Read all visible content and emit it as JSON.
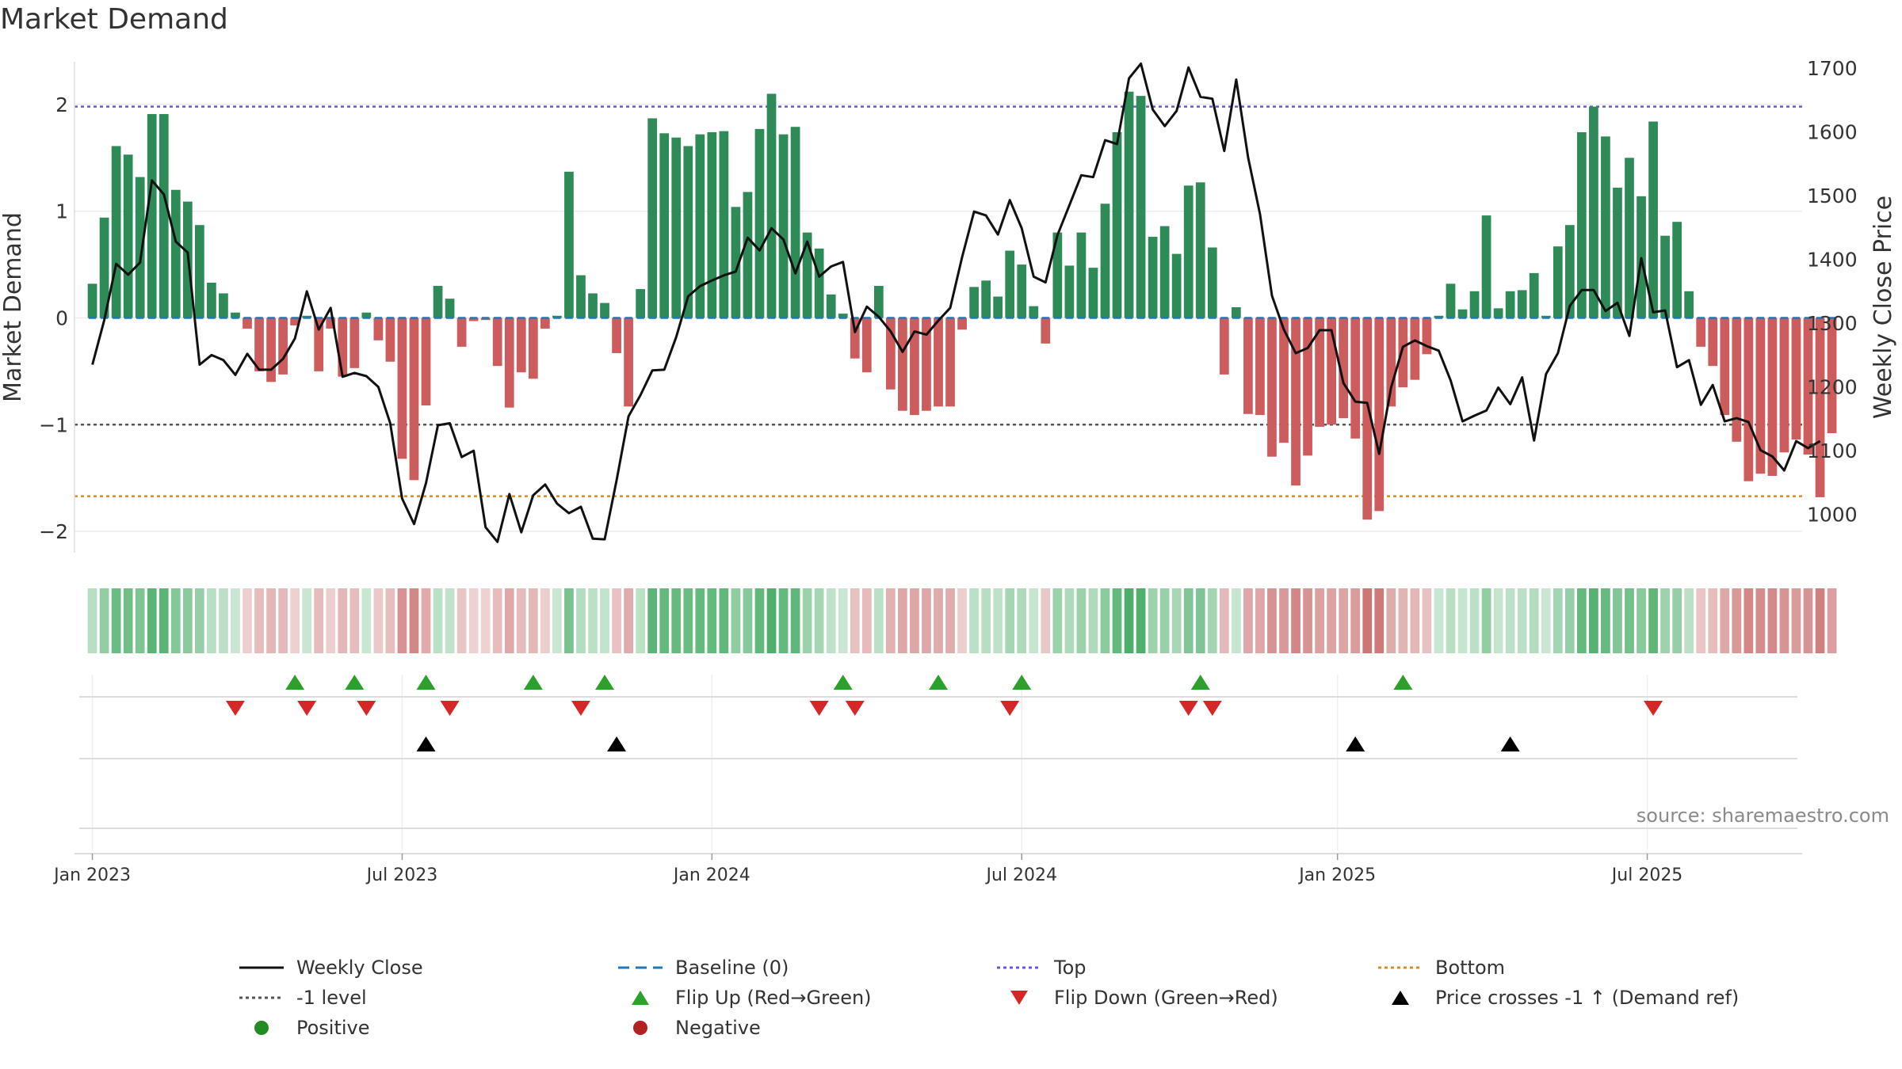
{
  "chart_data": {
    "type": "bar",
    "title": "Market Demand",
    "ylabel_left": "Market Demand",
    "ylabel_right": "Weekly Close Price",
    "ylim_left": [
      -2.2,
      2.4
    ],
    "ylim_right": [
      940,
      1710
    ],
    "yticks_left": [
      {
        "value": 2,
        "label": "2"
      },
      {
        "value": 1,
        "label": "1"
      },
      {
        "value": 0,
        "label": "0"
      },
      {
        "value": -1,
        "label": "−1"
      },
      {
        "value": -2,
        "label": "−2"
      }
    ],
    "yticks_right": [
      1700,
      1600,
      1500,
      1400,
      1300,
      1200,
      1100,
      1000
    ],
    "x_range_weeks": [
      -1.5,
      143.5
    ],
    "xticks": [
      {
        "week": 0,
        "label": "Jan 2023"
      },
      {
        "week": 26,
        "label": "Jul 2023"
      },
      {
        "week": 52,
        "label": "Jan 2024"
      },
      {
        "week": 78,
        "label": "Jul 2024"
      },
      {
        "week": 104.5,
        "label": "Jan 2025"
      },
      {
        "week": 130.5,
        "label": "Jul 2025"
      }
    ],
    "reference_lines": {
      "top": 1.98,
      "minus_one": -1,
      "bottom": -1.67
    },
    "demand": [
      0.32,
      0.94,
      1.61,
      1.53,
      1.32,
      1.91,
      1.91,
      1.2,
      1.09,
      0.87,
      0.33,
      0.23,
      0.05,
      -0.1,
      -0.5,
      -0.6,
      -0.53,
      -0.07,
      0.02,
      -0.5,
      -0.1,
      -0.55,
      -0.47,
      0.05,
      -0.21,
      -0.41,
      -1.32,
      -1.52,
      -0.82,
      0.3,
      0.18,
      -0.27,
      -0.03,
      -0.02,
      -0.45,
      -0.84,
      -0.51,
      -0.57,
      -0.1,
      0.02,
      1.37,
      0.4,
      0.23,
      0.14,
      -0.33,
      -0.83,
      0.27,
      1.87,
      1.73,
      1.69,
      1.61,
      1.72,
      1.74,
      1.75,
      1.04,
      1.18,
      1.77,
      2.1,
      1.72,
      1.79,
      0.8,
      0.65,
      0.22,
      0.04,
      -0.38,
      -0.51,
      0.3,
      -0.67,
      -0.87,
      -0.91,
      -0.87,
      -0.83,
      -0.83,
      -0.11,
      0.29,
      0.35,
      0.2,
      0.63,
      0.5,
      0.11,
      -0.24,
      0.8,
      0.49,
      0.8,
      0.47,
      1.07,
      1.74,
      2.12,
      2.08,
      0.76,
      0.86,
      0.6,
      1.24,
      1.27,
      0.66,
      -0.53,
      0.1,
      -0.9,
      -0.91,
      -1.3,
      -1.17,
      -1.57,
      -1.29,
      -1.02,
      -1.0,
      -0.94,
      -1.13,
      -1.89,
      -1.81,
      -0.83,
      -0.65,
      -0.58,
      -0.34,
      0.02,
      0.32,
      0.08,
      0.25,
      0.96,
      0.09,
      0.25,
      0.26,
      0.42,
      0.02,
      0.67,
      0.87,
      1.74,
      1.98,
      1.7,
      1.22,
      1.5,
      1.14,
      1.84,
      0.77,
      0.9,
      0.25,
      -0.27,
      -0.45,
      -0.91,
      -1.16,
      -1.53,
      -1.46,
      -1.48,
      -1.26,
      -1.14,
      -1.28,
      -1.68,
      -1.08
    ],
    "weekly_close": [
      1235,
      1305,
      1393,
      1376,
      1395,
      1524,
      1502,
      1428,
      1411,
      1235,
      1250,
      1242,
      1219,
      1252,
      1227,
      1227,
      1244,
      1276,
      1350,
      1290,
      1324,
      1216,
      1222,
      1217,
      1200,
      1143,
      1025,
      985,
      1049,
      1140,
      1143,
      1090,
      1100,
      980,
      957,
      1032,
      972,
      1030,
      1047,
      1017,
      1002,
      1012,
      962,
      961,
      1054,
      1154,
      1187,
      1226,
      1227,
      1278,
      1342,
      1358,
      1367,
      1375,
      1381,
      1434,
      1414,
      1449,
      1431,
      1378,
      1428,
      1373,
      1389,
      1396,
      1286,
      1326,
      1310,
      1287,
      1255,
      1287,
      1282,
      1304,
      1324,
      1404,
      1475,
      1469,
      1439,
      1493,
      1449,
      1373,
      1364,
      1438,
      1485,
      1532,
      1529,
      1587,
      1581,
      1684,
      1707,
      1635,
      1609,
      1633,
      1701,
      1655,
      1652,
      1570,
      1682,
      1560,
      1471,
      1343,
      1290,
      1253,
      1261,
      1289,
      1289,
      1206,
      1177,
      1175,
      1095,
      1199,
      1263,
      1273,
      1264,
      1257,
      1210,
      1146,
      1155,
      1163,
      1199,
      1173,
      1215,
      1116,
      1220,
      1253,
      1327,
      1352,
      1352,
      1319,
      1332,
      1280,
      1402,
      1317,
      1320,
      1231,
      1242,
      1172,
      1203,
      1146,
      1151,
      1145,
      1101,
      1091,
      1069,
      1115,
      1104,
      1115
    ],
    "markers_row1_flip_up_weeks": [
      17,
      22,
      28,
      37,
      43,
      63,
      71,
      78,
      93,
      110
    ],
    "markers_row1_flip_down_weeks": [
      12,
      18,
      23,
      30,
      41,
      61,
      64,
      77,
      92,
      94,
      131
    ],
    "markers_row2_price_cross_weeks": [
      28,
      44,
      106,
      119
    ],
    "colors": {
      "positive_bar": "#2e8b57",
      "negative_bar": "#cd5c5c",
      "price_line": "#111111",
      "baseline": "#1f77b4",
      "top_line": "#6a5acd",
      "minus_one_line": "#555555",
      "bottom_line": "#e08a1e",
      "flip_up": "#2ca02c",
      "flip_down": "#d62728",
      "price_cross": "#000000",
      "positive_dot": "#228b22",
      "negative_dot": "#b22222"
    },
    "legend": [
      {
        "key": "weekly_close",
        "label": "Weekly Close"
      },
      {
        "key": "baseline",
        "label": "Baseline (0)"
      },
      {
        "key": "top",
        "label": "Top"
      },
      {
        "key": "bottom",
        "label": "Bottom"
      },
      {
        "key": "minus_one",
        "label": "-1 level"
      },
      {
        "key": "flip_up",
        "label": "Flip Up (Red→Green)"
      },
      {
        "key": "flip_down",
        "label": "Flip Down (Green→Red)"
      },
      {
        "key": "price_cross",
        "label": "Price crosses -1 ↑ (Demand ref)"
      },
      {
        "key": "positive",
        "label": "Positive"
      },
      {
        "key": "negative",
        "label": "Negative"
      }
    ],
    "source": "source: sharemaestro.com"
  }
}
